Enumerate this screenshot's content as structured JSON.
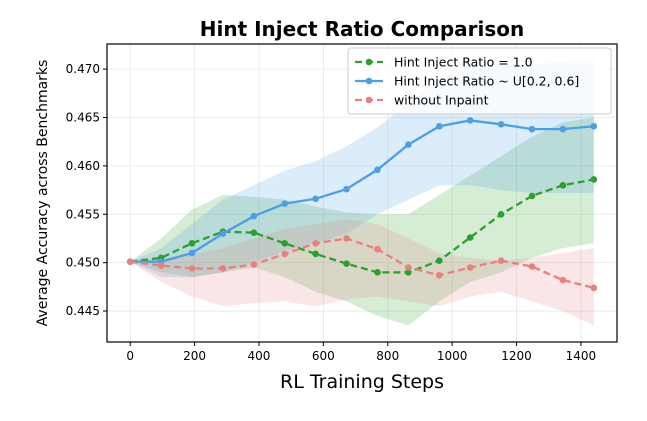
{
  "chart_data": {
    "type": "line",
    "title": "Hint Inject Ratio Comparison",
    "xlabel": "RL Training Steps",
    "ylabel": "Average Accuracy across Benchmarks",
    "xlim": [
      -72,
      1512
    ],
    "ylim": [
      0.4418,
      0.4726
    ],
    "xticks": [
      0,
      200,
      400,
      600,
      800,
      1000,
      1200,
      1400
    ],
    "yticks": [
      0.445,
      0.45,
      0.455,
      0.46,
      0.465,
      0.47
    ],
    "ytick_labels": [
      "0.445",
      "0.450",
      "0.455",
      "0.460",
      "0.465",
      "0.470"
    ],
    "grid": true,
    "legend_position": "top-right",
    "x": [
      0,
      96,
      192,
      288,
      384,
      480,
      576,
      672,
      768,
      864,
      960,
      1056,
      1152,
      1248,
      1344,
      1440
    ],
    "series": [
      {
        "name": "Hint Inject Ratio = 1.0",
        "color": "#2ca02c",
        "dashed": true,
        "values": [
          0.4501,
          0.4505,
          0.452,
          0.4532,
          0.4531,
          0.452,
          0.4509,
          0.4499,
          0.449,
          0.449,
          0.4502,
          0.4526,
          0.455,
          0.4569,
          0.458,
          0.4586
        ],
        "band_lower": [
          0.4501,
          0.449,
          0.4485,
          0.449,
          0.4495,
          0.4485,
          0.447,
          0.446,
          0.4445,
          0.4435,
          0.446,
          0.448,
          0.449,
          0.4505,
          0.4515,
          0.452
        ],
        "band_upper": [
          0.4501,
          0.4525,
          0.4555,
          0.457,
          0.4568,
          0.4565,
          0.4558,
          0.4552,
          0.455,
          0.455,
          0.457,
          0.459,
          0.461,
          0.463,
          0.4645,
          0.465
        ]
      },
      {
        "name": "Hint Inject Ratio ~ U[0.2, 0.6]",
        "color": "#4a9fe6",
        "dashed": false,
        "values": [
          0.4501,
          0.4501,
          0.451,
          0.453,
          0.4548,
          0.4561,
          0.4566,
          0.4576,
          0.4596,
          0.4622,
          0.4641,
          0.4647,
          0.4643,
          0.4638,
          0.4638,
          0.4641
        ],
        "band_lower": [
          0.4501,
          0.4485,
          0.4485,
          0.449,
          0.45,
          0.4512,
          0.452,
          0.453,
          0.455,
          0.4565,
          0.458,
          0.458,
          0.4575,
          0.4572,
          0.4572,
          0.4572
        ],
        "band_upper": [
          0.4501,
          0.4515,
          0.454,
          0.4565,
          0.458,
          0.4595,
          0.4605,
          0.462,
          0.464,
          0.4665,
          0.469,
          0.4705,
          0.4705,
          0.4705,
          0.4708,
          0.471
        ]
      },
      {
        "name": "without Inpaint",
        "color": "#e88080",
        "dashed": true,
        "values": [
          0.4501,
          0.4497,
          0.4494,
          0.4494,
          0.4498,
          0.4509,
          0.452,
          0.4525,
          0.4514,
          0.4495,
          0.4487,
          0.4495,
          0.4502,
          0.4496,
          0.4482,
          0.4474
        ],
        "band_lower": [
          0.4501,
          0.448,
          0.4465,
          0.4455,
          0.4458,
          0.446,
          0.4455,
          0.4462,
          0.4465,
          0.446,
          0.4455,
          0.4465,
          0.447,
          0.446,
          0.445,
          0.4435
        ],
        "band_upper": [
          0.4501,
          0.4505,
          0.4508,
          0.4515,
          0.4525,
          0.4535,
          0.454,
          0.4545,
          0.454,
          0.4525,
          0.451,
          0.4505,
          0.4502,
          0.4505,
          0.451,
          0.4515
        ]
      }
    ]
  }
}
